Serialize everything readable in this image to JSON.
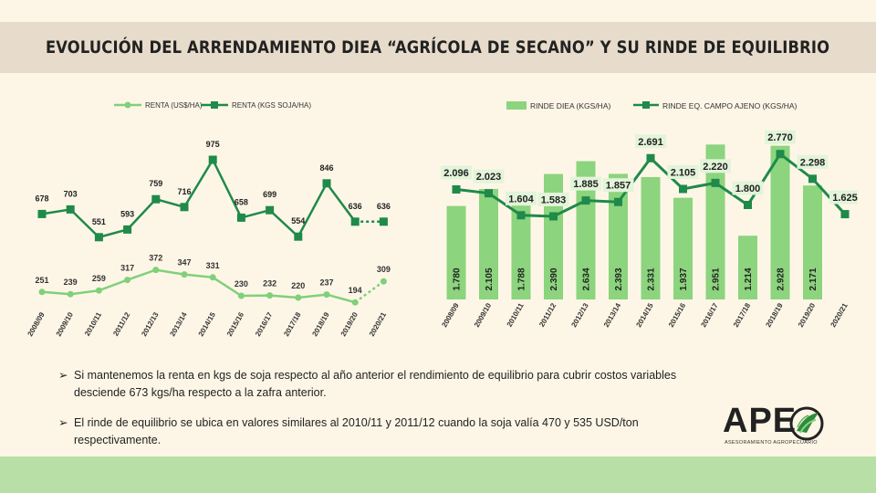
{
  "title": "EVOLUCIÓN DEL ARRENDAMIENTO DIEA “AGRÍCOLA DE SECANO” Y SU RINDE DE EQUILIBRIO",
  "colors": {
    "light_green": "#80d07a",
    "dark_green": "#1f8a4a",
    "bar_green": "#8cd47e",
    "label_bg": "#e2f4d9",
    "background": "#fdf6e6",
    "title_bg": "#e7dccb",
    "footer_band": "#b8e0a6"
  },
  "chart_data": [
    {
      "type": "line",
      "legend_position": "top",
      "categories": [
        "2008/09",
        "2009/10",
        "2010/11",
        "2011/12",
        "2012/13",
        "2013/14",
        "2014/15",
        "2015/16",
        "2016/17",
        "2017/18",
        "2018/19",
        "2019/20",
        "2020/21"
      ],
      "series": [
        {
          "name": "Renta (US$/ha)",
          "values": [
            251,
            239,
            259,
            317,
            372,
            347,
            331,
            230,
            232,
            220,
            237,
            194,
            309
          ],
          "projected_last": true
        },
        {
          "name": "Renta (kgs soja/ha)",
          "values": [
            678,
            703,
            551,
            593,
            759,
            716,
            975,
            658,
            699,
            554,
            846,
            636,
            636
          ],
          "projected_last": true
        }
      ],
      "value_labels": {
        "Renta (US$/ha)": [
          "251",
          "239",
          "259",
          "317",
          "372",
          "347",
          "331",
          "230",
          "232",
          "220",
          "237",
          "194",
          "309"
        ],
        "Renta (kgs soja/ha)": [
          "678",
          "703",
          "551",
          "593",
          "759",
          "716",
          "975",
          "658",
          "699",
          "554",
          "846",
          "636",
          "636"
        ]
      },
      "ylim": [
        0,
        1200
      ]
    },
    {
      "type": "bar",
      "legend_position": "top",
      "categories": [
        "2008/09",
        "2009/10",
        "2010/11",
        "2011/12",
        "2012/13",
        "2013/14",
        "2014/15",
        "2015/16",
        "2016/17",
        "2017/18",
        "2018/19",
        "2019/20",
        "2020/21"
      ],
      "series": [
        {
          "name": "Rinde DIEA (kgs/ha)",
          "type": "bar",
          "values": [
            1780,
            2105,
            1788,
            2390,
            2634,
            2393,
            2331,
            1937,
            2951,
            1214,
            2928,
            2171,
            null
          ]
        },
        {
          "name": "Rinde eq. campo ajeno (kgs/ha)",
          "type": "line",
          "values": [
            2096,
            2023,
            1604,
            1583,
            1885,
            1857,
            2691,
            2105,
            2220,
            1800,
            2770,
            2298,
            1625
          ]
        }
      ],
      "value_labels": {
        "Rinde DIEA (kgs/ha)": [
          "1.780",
          "2.105",
          "1.788",
          "2.390",
          "2.634",
          "2.393",
          "2.331",
          "1.937",
          "2.951",
          "1.214",
          "2.928",
          "2.171",
          ""
        ],
        "Rinde eq. campo ajeno (kgs/ha)": [
          "2.096",
          "2.023",
          "1.604",
          "1.583",
          "1.885",
          "1.857",
          "2.691",
          "2.105",
          "2.220",
          "1.800",
          "2.770",
          "2.298",
          "1.625"
        ]
      },
      "ylim": [
        0,
        3500
      ]
    }
  ],
  "bullets": [
    {
      "arrow": "➢",
      "text": "Si mantenemos la renta en kgs de soja respecto al año anterior el rendimiento de equilibrio para cubrir costos variables desciende 673 kgs/ha respecto a la zafra anterior."
    },
    {
      "arrow": "➢",
      "text": "El rinde de equilibrio se ubica en valores similares al 2010/11  y 2011/12  cuando la soja valía 470 y 535  USD/ton respectivamente."
    }
  ],
  "logo": {
    "text": "APE",
    "subtitle": "ASESORAMIENTO AGROPECUARIO"
  }
}
